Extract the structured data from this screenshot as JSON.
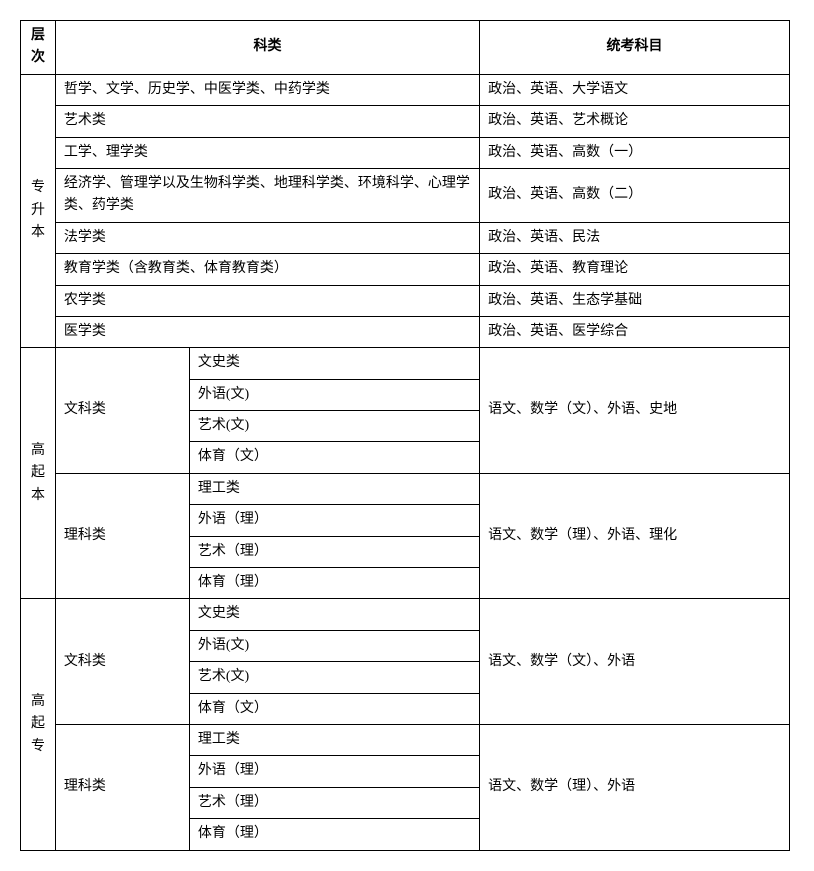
{
  "headers": {
    "level": "层次",
    "category": "科类",
    "subjects": "统考科目"
  },
  "section1": {
    "level": "专升本",
    "rows": [
      {
        "cat": "哲学、文学、历史学、中医学类、中药学类",
        "subj": "政治、英语、大学语文"
      },
      {
        "cat": "艺术类",
        "subj": "政治、英语、艺术概论"
      },
      {
        "cat": "工学、理学类",
        "subj": "政治、英语、高数（一）"
      },
      {
        "cat": "经济学、管理学以及生物科学类、地理科学类、环境科学、心理学类、药学类",
        "subj": "政治、英语、高数（二）"
      },
      {
        "cat": "法学类",
        "subj": "政治、英语、民法"
      },
      {
        "cat": "教育学类（含教育类、体育教育类）",
        "subj": "政治、英语、教育理论"
      },
      {
        "cat": "农学类",
        "subj": "政治、英语、生态学基础"
      },
      {
        "cat": "医学类",
        "subj": "政治、英语、医学综合"
      }
    ]
  },
  "section2": {
    "level": "高起本",
    "groups": [
      {
        "group": "文科类",
        "sub": [
          "文史类",
          "外语(文)",
          "艺术(文)",
          "体育（文）"
        ],
        "subj": "语文、数学（文）、外语、史地"
      },
      {
        "group": "理科类",
        "sub": [
          "理工类",
          "外语（理）",
          "艺术（理）",
          "体育（理）"
        ],
        "subj": "语文、数学（理）、外语、理化"
      }
    ]
  },
  "section3": {
    "level": "高起专",
    "groups": [
      {
        "group": "文科类",
        "sub": [
          "文史类",
          "外语(文)",
          "艺术(文)",
          "体育（文）"
        ],
        "subj": "语文、数学（文）、外语"
      },
      {
        "group": "理科类",
        "sub": [
          "理工类",
          "外语（理）",
          "艺术（理）",
          "体育（理）"
        ],
        "subj": "语文、数学（理）、外语"
      }
    ]
  }
}
